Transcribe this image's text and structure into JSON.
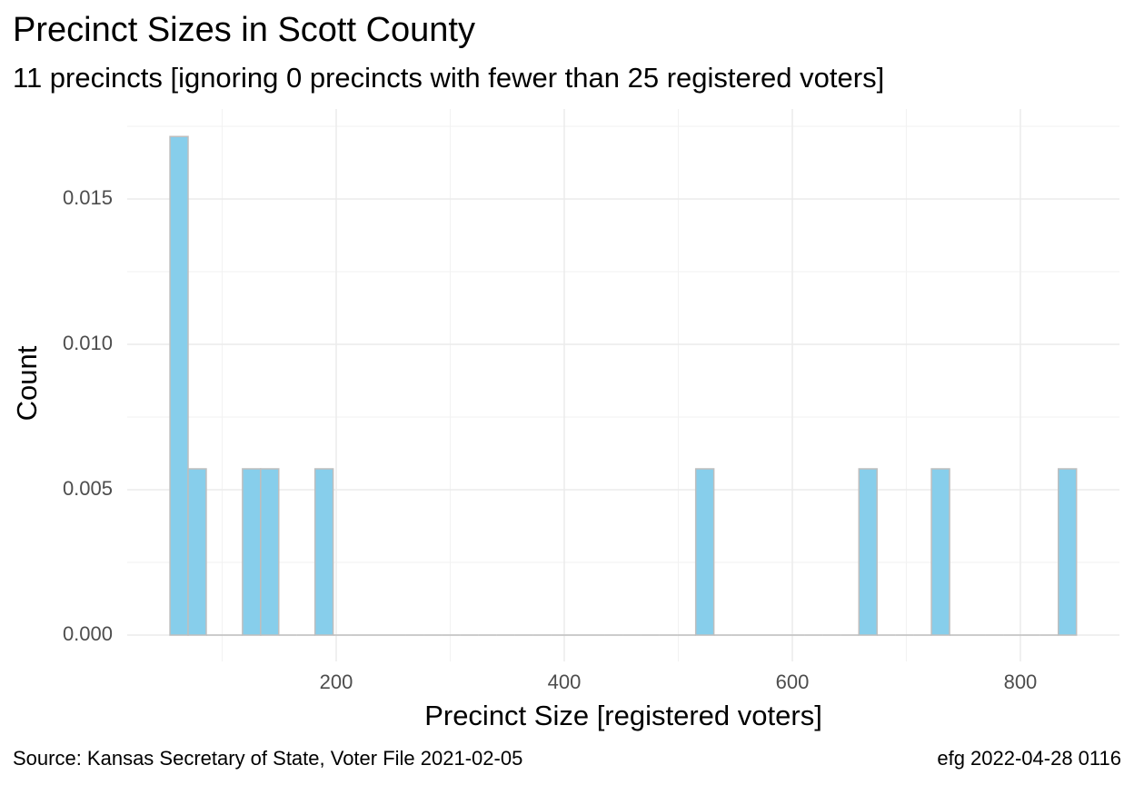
{
  "chart_data": {
    "type": "histogram",
    "title": "Precinct Sizes in Scott County",
    "subtitle": "11 precincts [ignoring 0 precincts with fewer than 25 registered voters]",
    "x_label": "Precinct Size [registered voters]",
    "y_label": "Count",
    "caption_left": "Source:  Kansas Secretary of State, Voter File  2021-02-05",
    "caption_right": "efg 2022-04-28 0116",
    "color": "#87ceeb",
    "edge_color": "#bebebe",
    "grid": true,
    "bins": [
      54.2,
      70.1,
      86.0,
      101.9,
      117.8,
      133.7,
      149.6,
      165.5,
      181.4,
      197.3,
      213.2,
      229.1,
      245.0,
      260.9,
      276.8,
      292.7,
      308.6,
      324.5,
      340.4,
      356.3,
      372.2,
      388.1,
      404.0,
      419.9,
      435.8,
      451.7,
      467.6,
      483.5,
      499.4,
      515.3,
      531.2,
      547.1,
      563.0,
      578.9,
      594.8,
      610.7,
      626.6,
      642.5,
      658.4,
      674.3,
      690.2,
      706.1,
      722.0,
      737.9,
      753.8,
      769.7,
      785.6,
      801.5,
      817.4,
      833.3,
      849.2
    ],
    "values": [
      0.01715,
      0.00572,
      0,
      0,
      0.00572,
      0.00572,
      0,
      0,
      0.00572,
      0,
      0,
      0,
      0,
      0,
      0,
      0,
      0,
      0,
      0,
      0,
      0,
      0,
      0,
      0,
      0,
      0,
      0,
      0,
      0,
      0.00572,
      0,
      0,
      0,
      0,
      0,
      0,
      0,
      0,
      0.00572,
      0,
      0,
      0,
      0.00572,
      0,
      0,
      0,
      0,
      0,
      0,
      0.00572
    ],
    "xlim": [
      16.7,
      886.9
    ],
    "ylim": [
      -0.000906,
      0.018094
    ],
    "xticks": [
      200,
      400,
      600,
      800
    ],
    "xminor": [
      100,
      300,
      500,
      700
    ],
    "yticks": [
      {
        "value": 0,
        "label": "0.000"
      },
      {
        "value": 0.005,
        "label": "0.005"
      },
      {
        "value": 0.01,
        "label": "0.010"
      },
      {
        "value": 0.015,
        "label": "0.015"
      }
    ],
    "yminor": [
      0.0025,
      0.0075,
      0.0125,
      0.0175
    ]
  }
}
